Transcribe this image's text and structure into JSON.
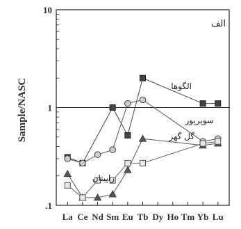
{
  "chart_data": {
    "type": "line",
    "log_y": true,
    "ylabel": "Sample/NASC",
    "ylim": [
      0.1,
      10
    ],
    "y_ticks": [
      "10",
      "1",
      ".1"
    ],
    "y_tick_values": [
      10,
      1,
      0.1
    ],
    "categories": [
      "La",
      "Ce",
      "Nd",
      "Sm",
      "Eu",
      "Tb",
      "Dy",
      "Ho",
      "Tm",
      "Yb",
      "Lu"
    ],
    "reference_line": 1,
    "panel_label": "الف",
    "series": [
      {
        "name": "الگوها",
        "marker": "square-filled",
        "x": [
          "La",
          "Ce",
          "Sm",
          "Eu",
          "Tb",
          "Yb",
          "Lu"
        ],
        "values": [
          0.31,
          0.27,
          1.0,
          0.52,
          2.0,
          1.1,
          1.1
        ]
      },
      {
        "name": "سوپریور",
        "marker": "circle",
        "x": [
          "La",
          "Ce",
          "Nd",
          "Sm",
          "Eu",
          "Tb",
          "Yb",
          "Lu"
        ],
        "values": [
          0.3,
          0.27,
          0.33,
          0.37,
          1.1,
          1.2,
          0.45,
          0.48
        ]
      },
      {
        "name": "گل گهر",
        "marker": "triangle",
        "x": [
          "La",
          "Ce",
          "Nd",
          "Sm",
          "Eu",
          "Tb",
          "Yb",
          "Lu"
        ],
        "values": [
          0.21,
          0.12,
          0.12,
          0.13,
          0.23,
          0.48,
          0.41,
          0.43
        ]
      },
      {
        "name": "راپیتان",
        "marker": "square-open",
        "x": [
          "La",
          "Ce",
          "Nd",
          "Sm",
          "Eu",
          "Tb",
          "Yb",
          "Lu"
        ],
        "values": [
          0.16,
          0.12,
          0.18,
          0.18,
          0.27,
          0.27,
          0.43,
          0.45
        ]
      }
    ]
  }
}
